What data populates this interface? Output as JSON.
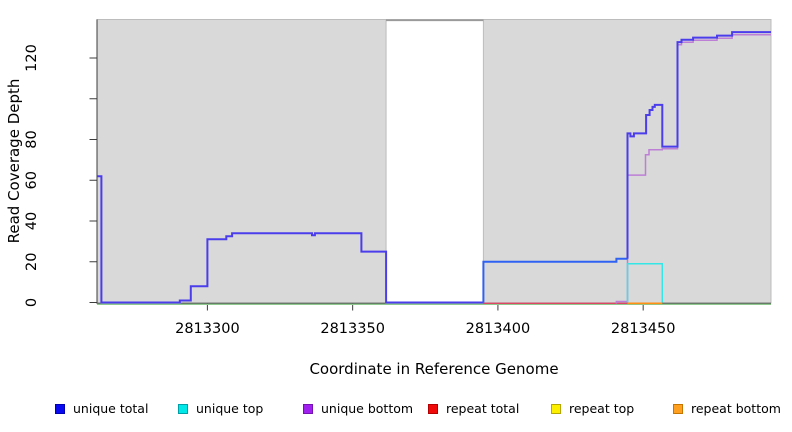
{
  "chart_data": {
    "type": "line",
    "title": "",
    "xlabel": "Coordinate in Reference Genome",
    "ylabel": "Read Coverage Depth",
    "xlim": [
      2813262,
      2813494
    ],
    "ylim": [
      0,
      139
    ],
    "grid": false,
    "x_ticks": [
      2813300,
      2813350,
      2813400,
      2813450
    ],
    "x_tick_labels": [
      "2813300",
      "2813350",
      "2813400",
      "2813450"
    ],
    "y_ticks": [
      0,
      20,
      40,
      60,
      80,
      100,
      120
    ],
    "y_tick_labels": [
      "0",
      "20",
      "40",
      "60",
      "80",
      "",
      "120"
    ],
    "plot_background_bands": [
      {
        "from": 2813262,
        "to": 2813361.5,
        "fill": "#d9d9d9",
        "edge": "#bcbcbc"
      },
      {
        "from": 2813395,
        "to": 2813494,
        "fill": "#d9d9d9",
        "edge": "#bcbcbc"
      }
    ],
    "masked_region": {
      "from": 2813361.5,
      "to": 2813395,
      "top_value": 138.6,
      "line_color": "#9a9a9a"
    },
    "series": [
      {
        "name": "baseline-green",
        "color": "#8fc98f",
        "width": 1.3,
        "dy": 1.8,
        "points": [
          [
            2813262,
            0
          ],
          [
            2813494,
            0
          ]
        ]
      },
      {
        "name": "repeat-total",
        "color": "#dc4864",
        "width": 1.4,
        "dy": 0.8,
        "points": [
          [
            2813395,
            0
          ],
          [
            2813444.6,
            0
          ]
        ]
      },
      {
        "name": "repeat-bottom",
        "color": "#ff9015",
        "width": 1.6,
        "dy": 0.8,
        "points": [
          [
            2813444.6,
            0
          ],
          [
            2813456.6,
            0
          ]
        ]
      },
      {
        "name": "unique-bottom",
        "color": "#bd7fd6",
        "width": 1.5,
        "dy": 1.0,
        "points": [
          [
            2813440.8,
            0
          ],
          [
            2813440.8,
            1
          ],
          [
            2813444.6,
            1
          ],
          [
            2813444.6,
            63
          ],
          [
            2813450.8,
            63
          ],
          [
            2813450.8,
            73
          ],
          [
            2813452,
            73
          ],
          [
            2813452,
            75.5
          ],
          [
            2813456.6,
            75.5
          ],
          [
            2813456.6,
            76
          ],
          [
            2813461.8,
            76
          ],
          [
            2813461.8,
            127
          ],
          [
            2813463.2,
            127
          ],
          [
            2813463.2,
            128.2
          ],
          [
            2813467.2,
            128.2
          ],
          [
            2813467.2,
            129.2
          ],
          [
            2813475.4,
            129.2
          ],
          [
            2813475.4,
            130.2
          ],
          [
            2813480.6,
            130.2
          ],
          [
            2813480.6,
            131.9
          ],
          [
            2813494,
            131.9
          ]
        ]
      },
      {
        "name": "unique-top",
        "color": "#35e6e6",
        "width": 1.5,
        "dy": 0,
        "points": [
          [
            2813444.6,
            0
          ],
          [
            2813444.6,
            19
          ],
          [
            2813456.6,
            19
          ],
          [
            2813456.6,
            0
          ]
        ]
      },
      {
        "name": "unique-total-left",
        "color": "#4b3deb",
        "width": 2,
        "dy": 0,
        "points": [
          [
            2813262,
            62
          ],
          [
            2813263.5,
            62
          ],
          [
            2813263.5,
            0
          ],
          [
            2813290.5,
            0
          ],
          [
            2813290.5,
            1
          ],
          [
            2813294.3,
            1
          ],
          [
            2813294.3,
            8
          ],
          [
            2813300,
            8
          ],
          [
            2813300,
            31
          ],
          [
            2813306.5,
            31
          ],
          [
            2813306.5,
            32.5
          ],
          [
            2813308.5,
            32.5
          ],
          [
            2813308.5,
            34
          ],
          [
            2813336,
            34
          ],
          [
            2813336,
            33
          ],
          [
            2813337,
            33
          ],
          [
            2813337,
            34
          ],
          [
            2813353,
            34
          ],
          [
            2813353,
            25
          ],
          [
            2813361.5,
            25
          ],
          [
            2813361.5,
            0
          ],
          [
            2813395,
            0
          ]
        ]
      },
      {
        "name": "unique-total-mid",
        "color": "#2f62f2",
        "width": 2,
        "dy": 0,
        "points": [
          [
            2813395,
            0
          ],
          [
            2813395,
            20
          ],
          [
            2813440.8,
            20
          ],
          [
            2813440.8,
            21.5
          ],
          [
            2813444.6,
            21.5
          ]
        ]
      },
      {
        "name": "unique-total-right",
        "color": "#4b3deb",
        "width": 2,
        "dy": 0,
        "points": [
          [
            2813444.6,
            21.5
          ],
          [
            2813444.6,
            83
          ],
          [
            2813445.6,
            83
          ],
          [
            2813445.6,
            81.5
          ],
          [
            2813446.8,
            81.5
          ],
          [
            2813446.8,
            83
          ],
          [
            2813451,
            83
          ],
          [
            2813451,
            92
          ],
          [
            2813452.2,
            92
          ],
          [
            2813452.2,
            94.5
          ],
          [
            2813453.2,
            94.5
          ],
          [
            2813453.2,
            96
          ],
          [
            2813454,
            96
          ],
          [
            2813454,
            97
          ],
          [
            2813456.6,
            97
          ],
          [
            2813456.6,
            76.5
          ],
          [
            2813461.8,
            76.5
          ],
          [
            2813461.8,
            127.8
          ],
          [
            2813463.2,
            127.8
          ],
          [
            2813463.2,
            129
          ],
          [
            2813467.2,
            129
          ],
          [
            2813467.2,
            130
          ],
          [
            2813475.4,
            130
          ],
          [
            2813475.4,
            131
          ],
          [
            2813480.6,
            131
          ],
          [
            2813480.6,
            132.7
          ],
          [
            2813494,
            132.7
          ]
        ]
      }
    ],
    "legend": {
      "position": "bottom",
      "entries": [
        {
          "label": "unique total",
          "fill": "#0a0af0",
          "border": "#0000b4"
        },
        {
          "label": "unique top",
          "fill": "#00e8e8",
          "border": "#00a0a8"
        },
        {
          "label": "unique bottom",
          "fill": "#a020f0",
          "border": "#7612b4"
        },
        {
          "label": "repeat total",
          "fill": "#f00a0a",
          "border": "#b40000"
        },
        {
          "label": "repeat top",
          "fill": "#fcf000",
          "border": "#b4a800"
        },
        {
          "label": "repeat bottom",
          "fill": "#ffa020",
          "border": "#c47600"
        }
      ]
    },
    "axis_color": "#3c3c3c",
    "tick_label_color": "#000000"
  }
}
